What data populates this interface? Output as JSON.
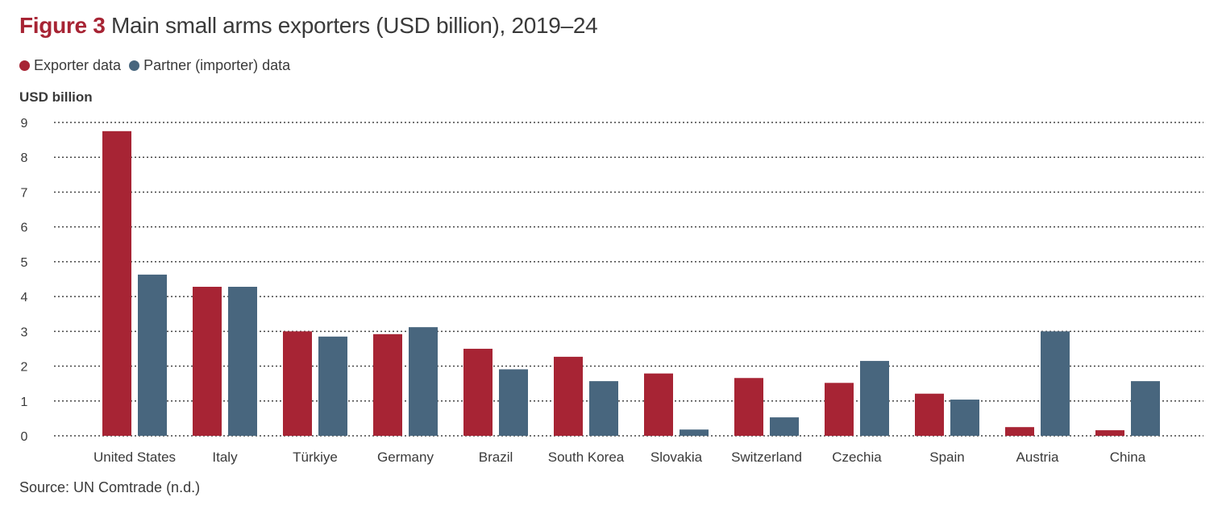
{
  "title": {
    "figure_label": "Figure 3",
    "text": "Main small arms exporters (USD billion), 2019–24"
  },
  "legend": [
    {
      "name": "Exporter data",
      "color": "#a72434"
    },
    {
      "name": "Partner (importer) data",
      "color": "#48667e"
    }
  ],
  "source": "Source: UN Comtrade (n.d.)",
  "chart_data": {
    "type": "bar",
    "title": "Figure 3 Main small arms exporters (USD billion), 2019–24",
    "xlabel": "",
    "ylabel": "USD billion",
    "ylim": [
      0,
      9
    ],
    "yticks": [
      0,
      1,
      2,
      3,
      4,
      5,
      6,
      7,
      8,
      9
    ],
    "grid": true,
    "grid_style": "dotted",
    "legend_position": "top-left",
    "categories": [
      "United States",
      "Italy",
      "Türkiye",
      "Germany",
      "Brazil",
      "South Korea",
      "Slovakia",
      "Switzerland",
      "Czechia",
      "Spain",
      "Austria",
      "China"
    ],
    "series": [
      {
        "name": "Exporter data",
        "color": "#a72434",
        "values": [
          8.75,
          4.28,
          3.0,
          2.92,
          2.5,
          2.27,
          1.79,
          1.66,
          1.52,
          1.21,
          0.25,
          0.16
        ]
      },
      {
        "name": "Partner (importer) data",
        "color": "#48667e",
        "values": [
          4.63,
          4.28,
          2.85,
          3.12,
          1.91,
          1.57,
          0.18,
          0.53,
          2.15,
          1.04,
          3.0,
          1.57
        ]
      }
    ]
  }
}
